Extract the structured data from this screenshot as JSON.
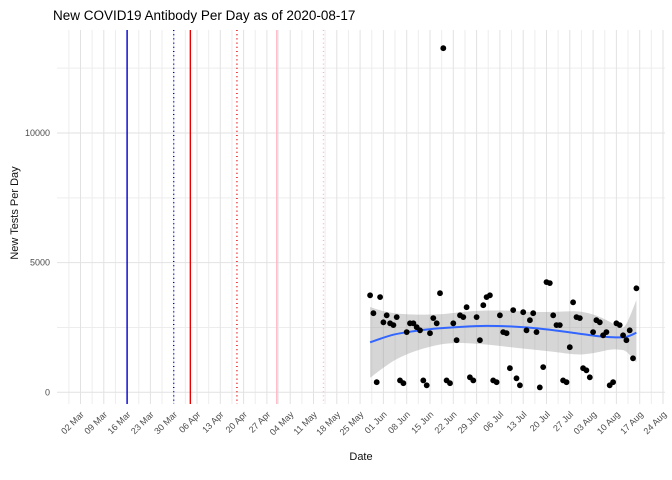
{
  "title": "New COVID19 Antibody Per Day as of 2020-08-17",
  "chart_data": {
    "type": "scatter",
    "title": "New COVID19 Antibody Per Day as of 2020-08-17",
    "xlabel": "Date",
    "ylabel": "New Tests Per Day",
    "legend": "none",
    "grid": "major and minor, light grey on white",
    "x_axis": {
      "start": "2020-03-02",
      "end": "2020-08-24",
      "tick_interval_days": 7,
      "tick_labels": [
        "02 Mar",
        "09 Mar",
        "16 Mar",
        "23 Mar",
        "30 Mar",
        "06 Apr",
        "13 Apr",
        "20 Apr",
        "27 Apr",
        "04 May",
        "11 May",
        "18 May",
        "25 May",
        "01 Jun",
        "08 Jun",
        "15 Jun",
        "22 Jun",
        "29 Jun",
        "06 Jul",
        "13 Jul",
        "20 Jul",
        "27 Jul",
        "03 Aug",
        "10 Aug",
        "17 Aug",
        "24 Aug"
      ]
    },
    "y_axis": {
      "tick_values": [
        0,
        5000,
        10000
      ],
      "tick_labels": [
        "0",
        "5000",
        "10000"
      ],
      "minor_tick_values": [
        2500,
        7500,
        12500
      ],
      "limits": [
        -450,
        13970
      ]
    },
    "vlines": [
      {
        "date": "2020-03-16",
        "color": "#0000CD",
        "style": "solid"
      },
      {
        "date": "2020-03-30",
        "color": "#0000CD",
        "style": "dotted"
      },
      {
        "date": "2020-04-04",
        "color": "#E60000",
        "style": "solid"
      },
      {
        "date": "2020-04-18",
        "color": "#E60000",
        "style": "dotted"
      },
      {
        "date": "2020-04-30",
        "color": "#FFB0C0",
        "style": "solid"
      },
      {
        "date": "2020-05-14",
        "color": "#FFB0C0",
        "style": "dotted"
      }
    ],
    "points": [
      {
        "d": "2020-05-28",
        "v": 3740
      },
      {
        "d": "2020-05-29",
        "v": 3050
      },
      {
        "d": "2020-05-30",
        "v": 390
      },
      {
        "d": "2020-05-31",
        "v": 3670
      },
      {
        "d": "2020-06-01",
        "v": 2700
      },
      {
        "d": "2020-06-02",
        "v": 2970
      },
      {
        "d": "2020-06-03",
        "v": 2660
      },
      {
        "d": "2020-06-04",
        "v": 2590
      },
      {
        "d": "2020-06-05",
        "v": 2900
      },
      {
        "d": "2020-06-06",
        "v": 460
      },
      {
        "d": "2020-06-07",
        "v": 350
      },
      {
        "d": "2020-06-08",
        "v": 2320
      },
      {
        "d": "2020-06-09",
        "v": 2660
      },
      {
        "d": "2020-06-10",
        "v": 2660
      },
      {
        "d": "2020-06-11",
        "v": 2510
      },
      {
        "d": "2020-06-12",
        "v": 2390
      },
      {
        "d": "2020-06-13",
        "v": 460
      },
      {
        "d": "2020-06-14",
        "v": 270
      },
      {
        "d": "2020-06-15",
        "v": 2280
      },
      {
        "d": "2020-06-16",
        "v": 2860
      },
      {
        "d": "2020-06-17",
        "v": 2660
      },
      {
        "d": "2020-06-18",
        "v": 3820
      },
      {
        "d": "2020-06-19",
        "v": 13270
      },
      {
        "d": "2020-06-20",
        "v": 460
      },
      {
        "d": "2020-06-21",
        "v": 350
      },
      {
        "d": "2020-06-22",
        "v": 2660
      },
      {
        "d": "2020-06-23",
        "v": 2010
      },
      {
        "d": "2020-06-24",
        "v": 2970
      },
      {
        "d": "2020-06-25",
        "v": 2900
      },
      {
        "d": "2020-06-26",
        "v": 3280
      },
      {
        "d": "2020-06-27",
        "v": 580
      },
      {
        "d": "2020-06-28",
        "v": 460
      },
      {
        "d": "2020-06-29",
        "v": 2900
      },
      {
        "d": "2020-06-30",
        "v": 2010
      },
      {
        "d": "2020-07-01",
        "v": 3360
      },
      {
        "d": "2020-07-02",
        "v": 3670
      },
      {
        "d": "2020-07-03",
        "v": 3740
      },
      {
        "d": "2020-07-04",
        "v": 460
      },
      {
        "d": "2020-07-05",
        "v": 390
      },
      {
        "d": "2020-07-06",
        "v": 2970
      },
      {
        "d": "2020-07-07",
        "v": 2320
      },
      {
        "d": "2020-07-08",
        "v": 2280
      },
      {
        "d": "2020-07-09",
        "v": 930
      },
      {
        "d": "2020-07-10",
        "v": 3170
      },
      {
        "d": "2020-07-11",
        "v": 540
      },
      {
        "d": "2020-07-12",
        "v": 270
      },
      {
        "d": "2020-07-13",
        "v": 3090
      },
      {
        "d": "2020-07-14",
        "v": 2390
      },
      {
        "d": "2020-07-15",
        "v": 2780
      },
      {
        "d": "2020-07-16",
        "v": 3050
      },
      {
        "d": "2020-07-17",
        "v": 2320
      },
      {
        "d": "2020-07-18",
        "v": 190
      },
      {
        "d": "2020-07-19",
        "v": 970
      },
      {
        "d": "2020-07-20",
        "v": 4250
      },
      {
        "d": "2020-07-21",
        "v": 4210
      },
      {
        "d": "2020-07-22",
        "v": 2970
      },
      {
        "d": "2020-07-23",
        "v": 2590
      },
      {
        "d": "2020-07-24",
        "v": 2590
      },
      {
        "d": "2020-07-25",
        "v": 460
      },
      {
        "d": "2020-07-26",
        "v": 390
      },
      {
        "d": "2020-07-27",
        "v": 1740
      },
      {
        "d": "2020-07-28",
        "v": 3470
      },
      {
        "d": "2020-07-29",
        "v": 2900
      },
      {
        "d": "2020-07-30",
        "v": 2860
      },
      {
        "d": "2020-07-31",
        "v": 930
      },
      {
        "d": "2020-08-01",
        "v": 850
      },
      {
        "d": "2020-08-02",
        "v": 580
      },
      {
        "d": "2020-08-03",
        "v": 2320
      },
      {
        "d": "2020-08-04",
        "v": 2780
      },
      {
        "d": "2020-08-05",
        "v": 2700
      },
      {
        "d": "2020-08-06",
        "v": 2200
      },
      {
        "d": "2020-08-07",
        "v": 2320
      },
      {
        "d": "2020-08-08",
        "v": 270
      },
      {
        "d": "2020-08-09",
        "v": 390
      },
      {
        "d": "2020-08-10",
        "v": 2660
      },
      {
        "d": "2020-08-11",
        "v": 2590
      },
      {
        "d": "2020-08-12",
        "v": 2200
      },
      {
        "d": "2020-08-13",
        "v": 2010
      },
      {
        "d": "2020-08-14",
        "v": 2390
      },
      {
        "d": "2020-08-15",
        "v": 1310
      },
      {
        "d": "2020-08-16",
        "v": 4010
      }
    ],
    "smooth_line": {
      "color": "#3366FF",
      "points": [
        {
          "d": "2020-05-28",
          "v": 1930
        },
        {
          "d": "2020-06-04",
          "v": 2220
        },
        {
          "d": "2020-06-11",
          "v": 2370
        },
        {
          "d": "2020-06-18",
          "v": 2470
        },
        {
          "d": "2020-06-25",
          "v": 2530
        },
        {
          "d": "2020-07-02",
          "v": 2560
        },
        {
          "d": "2020-07-09",
          "v": 2540
        },
        {
          "d": "2020-07-16",
          "v": 2480
        },
        {
          "d": "2020-07-23",
          "v": 2380
        },
        {
          "d": "2020-07-30",
          "v": 2260
        },
        {
          "d": "2020-08-04",
          "v": 2170
        },
        {
          "d": "2020-08-09",
          "v": 2120
        },
        {
          "d": "2020-08-13",
          "v": 2140
        },
        {
          "d": "2020-08-16",
          "v": 2300
        }
      ]
    },
    "ribbon": {
      "color": "rgba(153,153,153,0.4)",
      "points": [
        {
          "d": "2020-05-28",
          "lo": 560,
          "hi": 3290
        },
        {
          "d": "2020-06-01",
          "lo": 950,
          "hi": 3130
        },
        {
          "d": "2020-06-05",
          "lo": 1280,
          "hi": 3040
        },
        {
          "d": "2020-06-10",
          "lo": 1560,
          "hi": 3000
        },
        {
          "d": "2020-06-15",
          "lo": 1760,
          "hi": 3000
        },
        {
          "d": "2020-06-20",
          "lo": 1880,
          "hi": 3030
        },
        {
          "d": "2020-06-25",
          "lo": 1900,
          "hi": 3100
        },
        {
          "d": "2020-07-01",
          "lo": 1850,
          "hi": 3150
        },
        {
          "d": "2020-07-08",
          "lo": 1760,
          "hi": 3150
        },
        {
          "d": "2020-07-15",
          "lo": 1660,
          "hi": 3100
        },
        {
          "d": "2020-07-22",
          "lo": 1560,
          "hi": 3100
        },
        {
          "d": "2020-07-29",
          "lo": 1460,
          "hi": 3120
        },
        {
          "d": "2020-08-03",
          "lo": 1510,
          "hi": 3000
        },
        {
          "d": "2020-08-08",
          "lo": 1640,
          "hi": 2720
        },
        {
          "d": "2020-08-11",
          "lo": 1640,
          "hi": 2480
        },
        {
          "d": "2020-08-13",
          "lo": 1560,
          "hi": 2640
        },
        {
          "d": "2020-08-16",
          "lo": 1150,
          "hi": 3560
        }
      ]
    },
    "colors": {
      "point": "#000000",
      "grid_major": "#E2E2E2",
      "grid_minor": "#EDEDED",
      "axis_text": "#4D4D4D",
      "background": "#FFFFFF"
    }
  }
}
